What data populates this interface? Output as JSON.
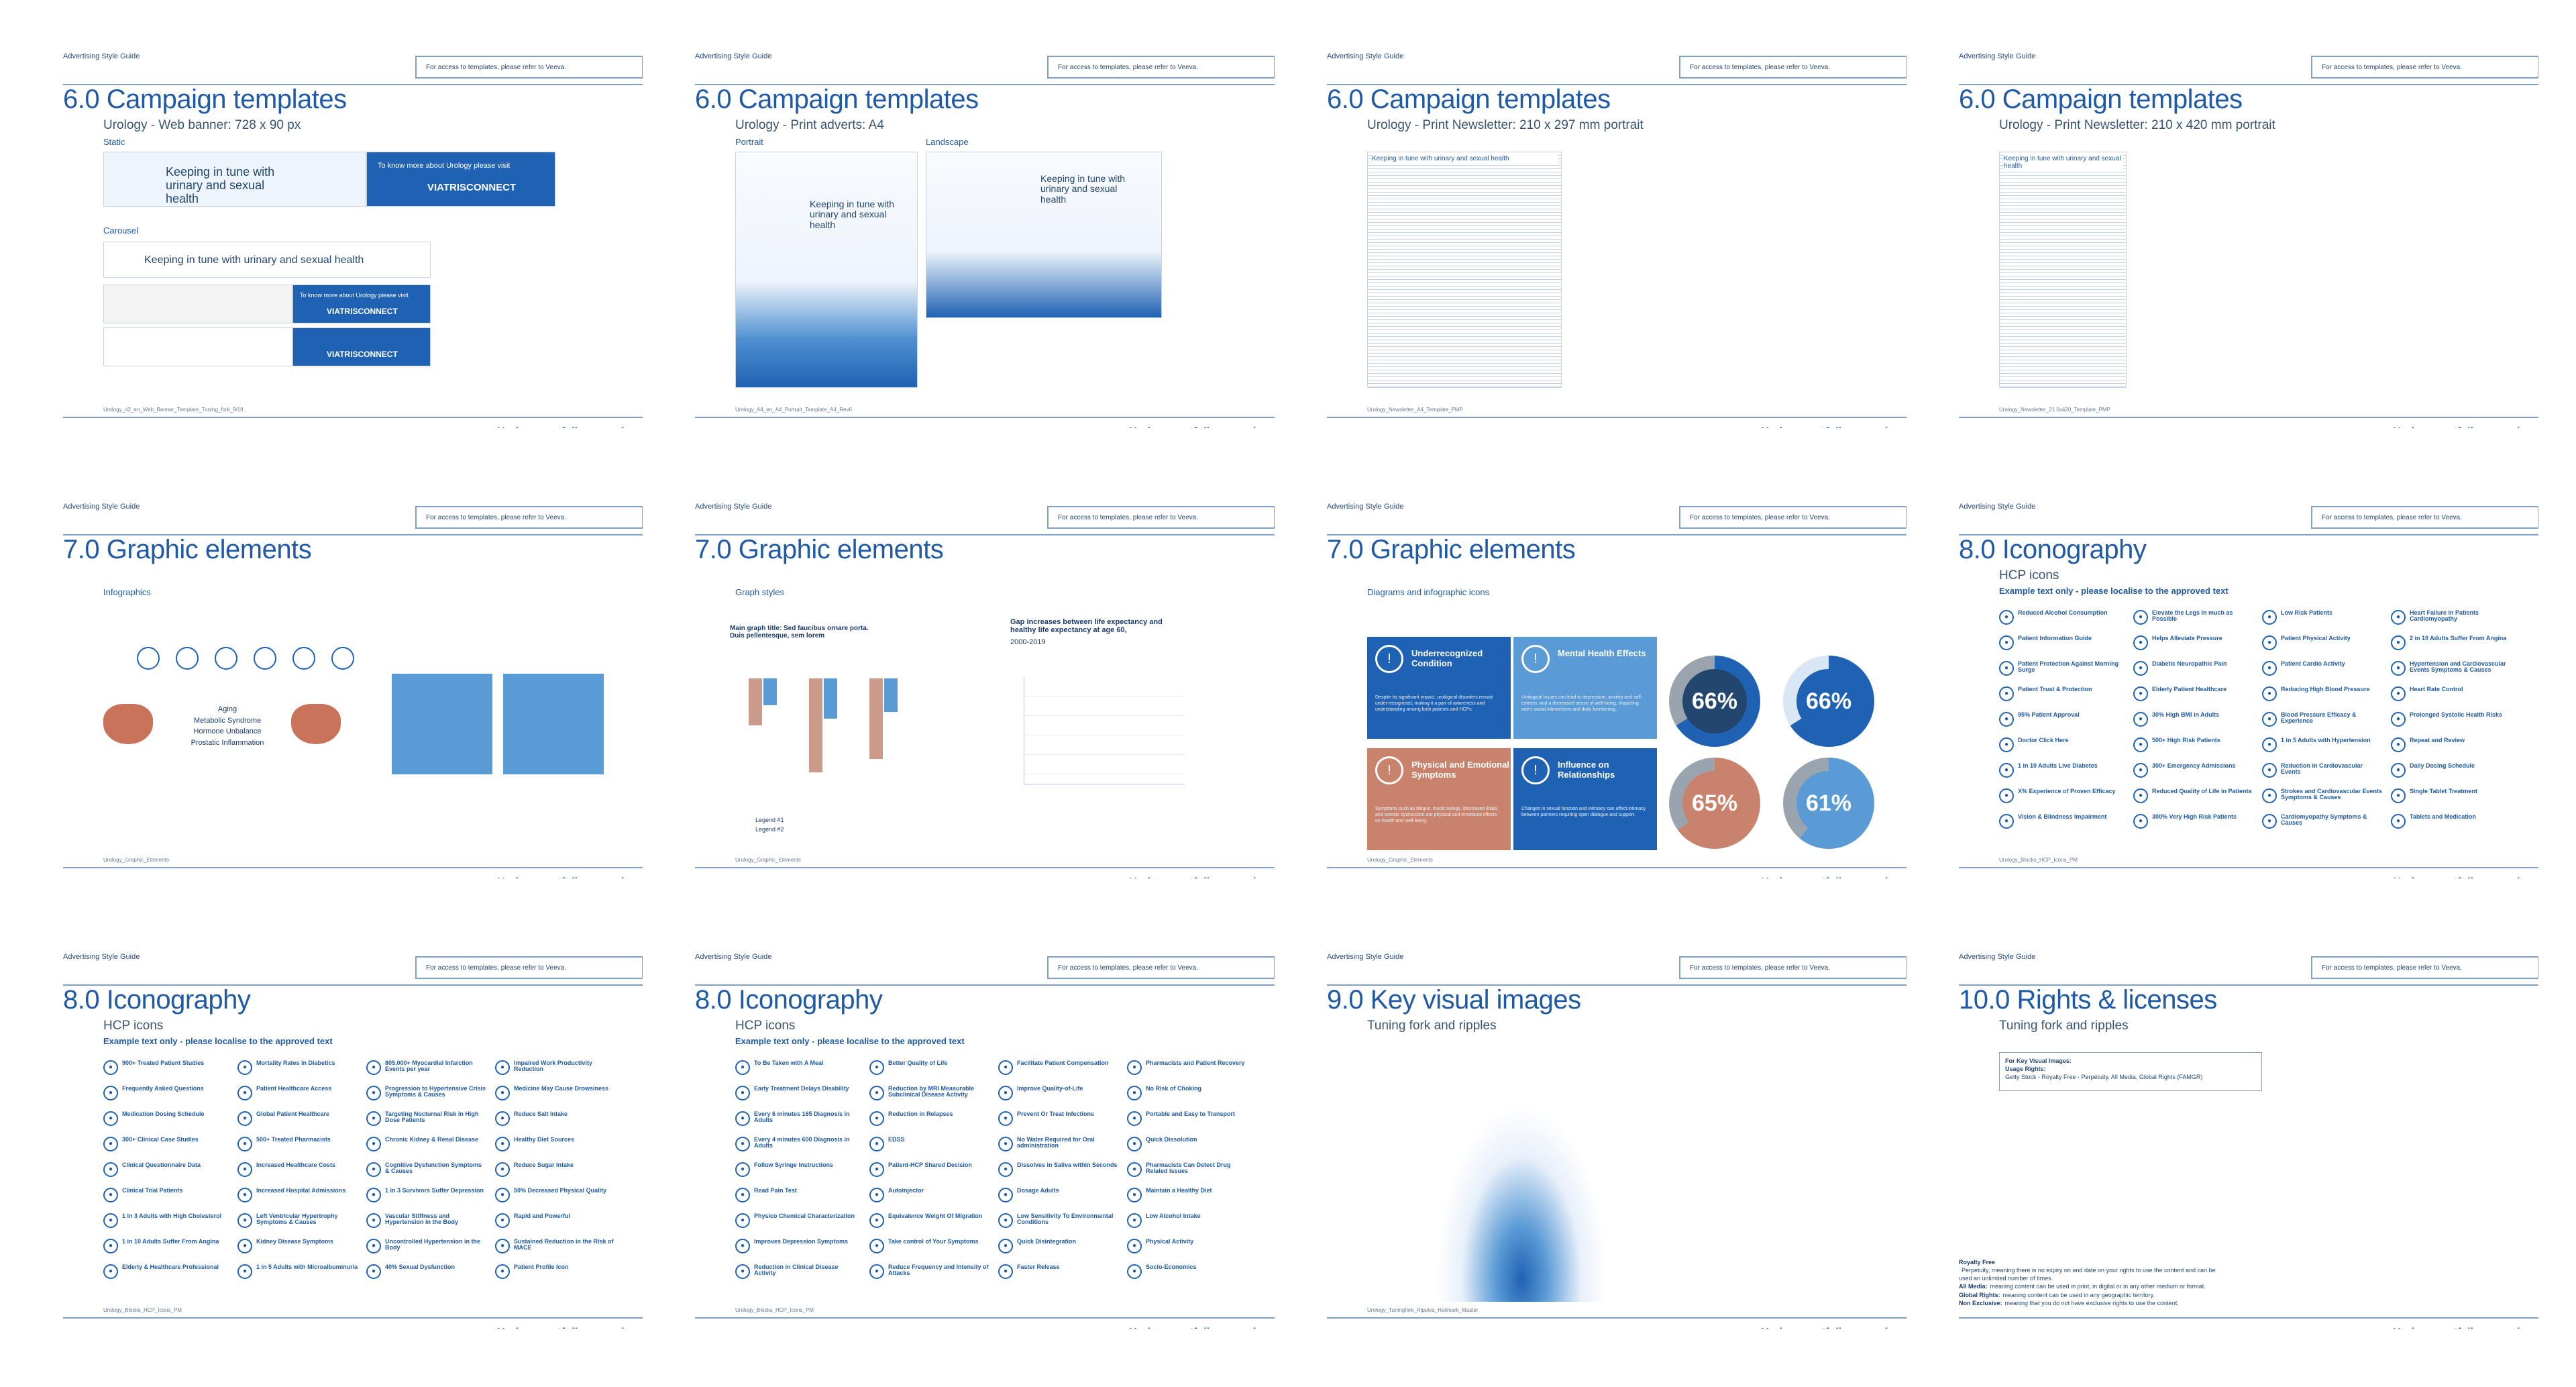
{
  "common": {
    "guide": "Advertising Style Guide",
    "access": "For access to templates, please refer to Veeva.",
    "footer": "Urology portfolio campaign"
  },
  "pages": [
    {
      "title": "6.0 Campaign templates",
      "subtitle": "Urology - Web banner: 728 x 90 px",
      "caption": "Urology_d2_en_Web_Banner_Template_Tuning_fork_9/18"
    },
    {
      "title": "6.0 Campaign templates",
      "subtitle": "Urology - Print adverts: A4",
      "caption": "Urology_A4_en_A4_Portrait_Template_A4_Rev6"
    },
    {
      "title": "6.0 Campaign templates",
      "subtitle": "Urology - Print Newsletter: 210 x 297 mm portrait",
      "caption": "Urology_Newsletter_A4_Template_PMP"
    },
    {
      "title": "6.0 Campaign templates",
      "subtitle": "Urology - Print Newsletter: 210 x 420 mm portrait",
      "caption": "Urology_Newsletter_21 0x420_Template_PMP"
    },
    {
      "title": "7.0 Graphic elements",
      "subtitle": "",
      "caption": "Urology_Graphic_Elements"
    },
    {
      "title": "7.0 Graphic elements",
      "subtitle": "",
      "caption": "Urology_Graphic_Elements"
    },
    {
      "title": "7.0 Graphic elements",
      "subtitle": "",
      "caption": "Urology_Graphic_Elements"
    },
    {
      "title": "8.0 Iconography",
      "subtitle": "HCP icons",
      "caption": "Urology_Blocks_HCP_Icons_PM"
    },
    {
      "title": "8.0 Iconography",
      "subtitle": "HCP icons",
      "caption": "Urology_Blocks_HCP_Icons_PM"
    },
    {
      "title": "8.0 Iconography",
      "subtitle": "HCP icons",
      "caption": "Urology_Blocks_HCP_Icons_PM"
    },
    {
      "title": "9.0 Key visual images",
      "subtitle": "Tuning fork and ripples",
      "caption": "Urology_Tuningfork_Ripples_Hallmark_Master"
    },
    {
      "title": "10.0 Rights & licenses",
      "subtitle": "Tuning fork and ripples",
      "caption": ""
    }
  ],
  "p1": {
    "static_label": "Static",
    "carousel_label": "Carousel",
    "headline": "Keeping in tune with urinary and sexual health",
    "cta": "To know more about Urology please visit",
    "brand": "VIATRISCONNECT",
    "carousel_cta": "To know more about Urology please visit"
  },
  "p2": {
    "portrait": "Portrait",
    "landscape": "Landscape",
    "headline": "Keeping in tune with urinary and sexual health"
  },
  "p3": {
    "headline": "Keeping in tune with urinary and sexual health",
    "body_title": "Effectiveness and safety of discussed concomitant therapy in hypertension with benign prostatic hyperplasia"
  },
  "p5": {
    "label": "Infographics",
    "center_text": [
      "Aging",
      "Metabolic Syndrome",
      "Hormone Unbalance",
      "Prostatic Inflammation"
    ]
  },
  "p6": {
    "label": "Graph styles",
    "chart1_title": "Main graph title: Sed faucibus ornare porta. Duis pellentesque, sem lorem",
    "chart2_title": "Gap increases between life expectancy and healthy life expectancy at age 60,",
    "chart2_sub": "2000-2019",
    "legend1": "Legend #1",
    "legend2": "Legend #2"
  },
  "p7": {
    "label": "Diagrams and infographic icons",
    "tiles": [
      {
        "title": "Underrecognized Condition",
        "body": "Despite its significant impact, urological disorders remain under-recognised, making it a part of awareness and understanding among both patients and HCPs."
      },
      {
        "title": "Mental Health Effects",
        "body": "Urological issues can lead to depression, anxiety and self-esteem, and a decreased sense of well-being, impacting one's social interactions and daily functioning."
      },
      {
        "title": "Physical and Emotional Symptoms",
        "body": "Symptoms such as fatigue, mood swings, decreased libido, and erectile dysfunction are physical and emotional effects on health and well-being."
      },
      {
        "title": "Influence on Relationships",
        "body": "Changes in sexual function and intimacy can affect intimacy between partners requiring open dialogue and support."
      }
    ],
    "donuts": [
      "66%",
      "66%",
      "65%",
      "61%"
    ]
  },
  "iconography_label": "Example text only - please localise to the approved text",
  "p8_icons": [
    "Reduced Alcohol Consumption",
    "Patient Information Guide",
    "Patient Protection Against Morning Surge",
    "Patient Trust & Protection",
    "95% Patient Approval",
    "Doctor Click Here",
    "1 in 10 Adults Live Diabetes",
    "X% Experience of Proven Efficacy",
    "Vision & Blindness Impairment",
    "Elevate the Legs in much as Possible",
    "Helps Alleviate Pressure",
    "Diabetic Neuropathic Pain",
    "Elderly Patient Healthcare",
    "30% High BMI in Adults",
    "500+ High Risk Patients",
    "300+ Emergency Admissions",
    "Reduced Quality of Life in Patients",
    "300% Very High Risk Patients",
    "Low Risk Patients",
    "Patient Physical Activity",
    "Patient Cardio Activity",
    "Reducing High Blood Pressure",
    "Blood Pressure Efficacy & Experience",
    "1 in 5 Adults with Hypertension",
    "Reduction in Cardiovascular Events",
    "Strokes and Cardiovascular Events Symptoms & Causes",
    "Cardiomyopathy Symptoms & Causes",
    "Heart Failure in Patients Cardiomyopathy",
    "2 in 10 Adults Suffer From Angina",
    "Hypertension and Cardiovascular Events Symptoms & Causes",
    "Heart Rate Control",
    "Prolonged Systolic Health Risks",
    "Repeat and Review",
    "Daily Dosing Schedule",
    "Single Tablet Treatment",
    "Tablets and Medication"
  ],
  "p9_icons": [
    "900+ Treated Patient Studies",
    "Frequently Asked Questions",
    "Medication Dosing Schedule",
    "300+ Clinical Case Studies",
    "Clinical Questionnaire Data",
    "Clinical Trial Patients",
    "1 in 3 Adults with High Cholesterol",
    "1 in 10 Adults Suffer From Angina",
    "Elderly & Healthcare Professional",
    "Mortality Rates in Diabetics",
    "Patient Healthcare Access",
    "Global Patient Healthcare",
    "500+ Treated Pharmacists",
    "Increased Healthcare Costs",
    "Increased Hospital Admissions",
    "Left Ventricular Hypertrophy Symptoms & Causes",
    "Kidney Disease Symptoms",
    "1 in 5 Adults with Microalbuminuria",
    "805,000+ Myocardial Infarction Events per year",
    "Progression to Hypertensive Crisis Symptoms & Causes",
    "Targeting Nocturnal Risk in High Dose Patients",
    "Chronic Kidney & Renal Disease",
    "Cognitive Dysfunction Symptoms & Causes",
    "1 in 3 Survivors Suffer Depression",
    "Vascular Stiffness and Hypertension in the Body",
    "Uncontrolled Hypertension in the Body",
    "40% Sexual Dysfunction",
    "Impaired Work Productivity Reduction",
    "Medicine May Cause Drowsiness",
    "Reduce Salt Intake",
    "Healthy Diet Sources",
    "Reduce Sugar Intake",
    "50% Decreased Physical Quality",
    "Rapid and Powerful",
    "Sustained Reduction in the Risk of MACE",
    "Patient Profile Icon"
  ],
  "p10_icons": [
    "To Be Taken with A Meal",
    "Early Treatment Delays Disability",
    "Every 6 minutes 165 Diagnosis in Adults",
    "Every 4 minutes 600 Diagnosis in Adults",
    "Follow Syringe Instructions",
    "Read Pain Test",
    "Physico Chemical Characterization",
    "Improves Depression Symptoms",
    "Reduction in Clinical Disease Activity",
    "Better Quality of Life",
    "Reduction by MRI Measurable Subclinical Disease Activity",
    "Reduction in Relapses",
    "EDSS",
    "Patient-HCP Shared Decision",
    "Autoinjector",
    "Equivalence Weight Of Migration",
    "Take control of Your Symptoms",
    "Reduce Frequency and Intensity of Attacks",
    "Facilitate Patient Compensation",
    "Improve Quality-of-Life",
    "Prevent Or Treat Infections",
    "No Water Required for Oral administration",
    "Dissolves in Saliva within Seconds",
    "Dosage Adults",
    "Low Sensitivity To Environmental Conditions",
    "Quick Disintegration",
    "Faster Release",
    "Pharmacists and Patient Recovery",
    "No Risk of Choking",
    "Portable and Easy to Transport",
    "Quick Dissolution",
    "Pharmacists Can Detect Drug Related Issues",
    "Maintain a Healthy Diet",
    "Low Alcohol Intake",
    "Physical Activity",
    "Socio-Economics"
  ],
  "p12": {
    "box_title": "For Key Visual Images:",
    "box_sub": "Usage Rights:",
    "box_text": "Getty Stock - Royalty Free - Perpetuity, All Media, Global Rights (FAMGR)",
    "legal": [
      {
        "b": "Royalty Free",
        "t": ""
      },
      {
        "b": "",
        "t": "Perpetuity, meaning there is no expiry on and date on your rights to use the content and can be used an unlimited number of times."
      },
      {
        "b": "All Media:",
        "t": "meaning content can be used in print, in digital or in any other medium or format."
      },
      {
        "b": "Global Rights:",
        "t": "meaning content can be used in any geographic territory."
      },
      {
        "b": "Non Exclusive:",
        "t": "meaning that you do not have exclusive rights to use the content."
      }
    ]
  }
}
